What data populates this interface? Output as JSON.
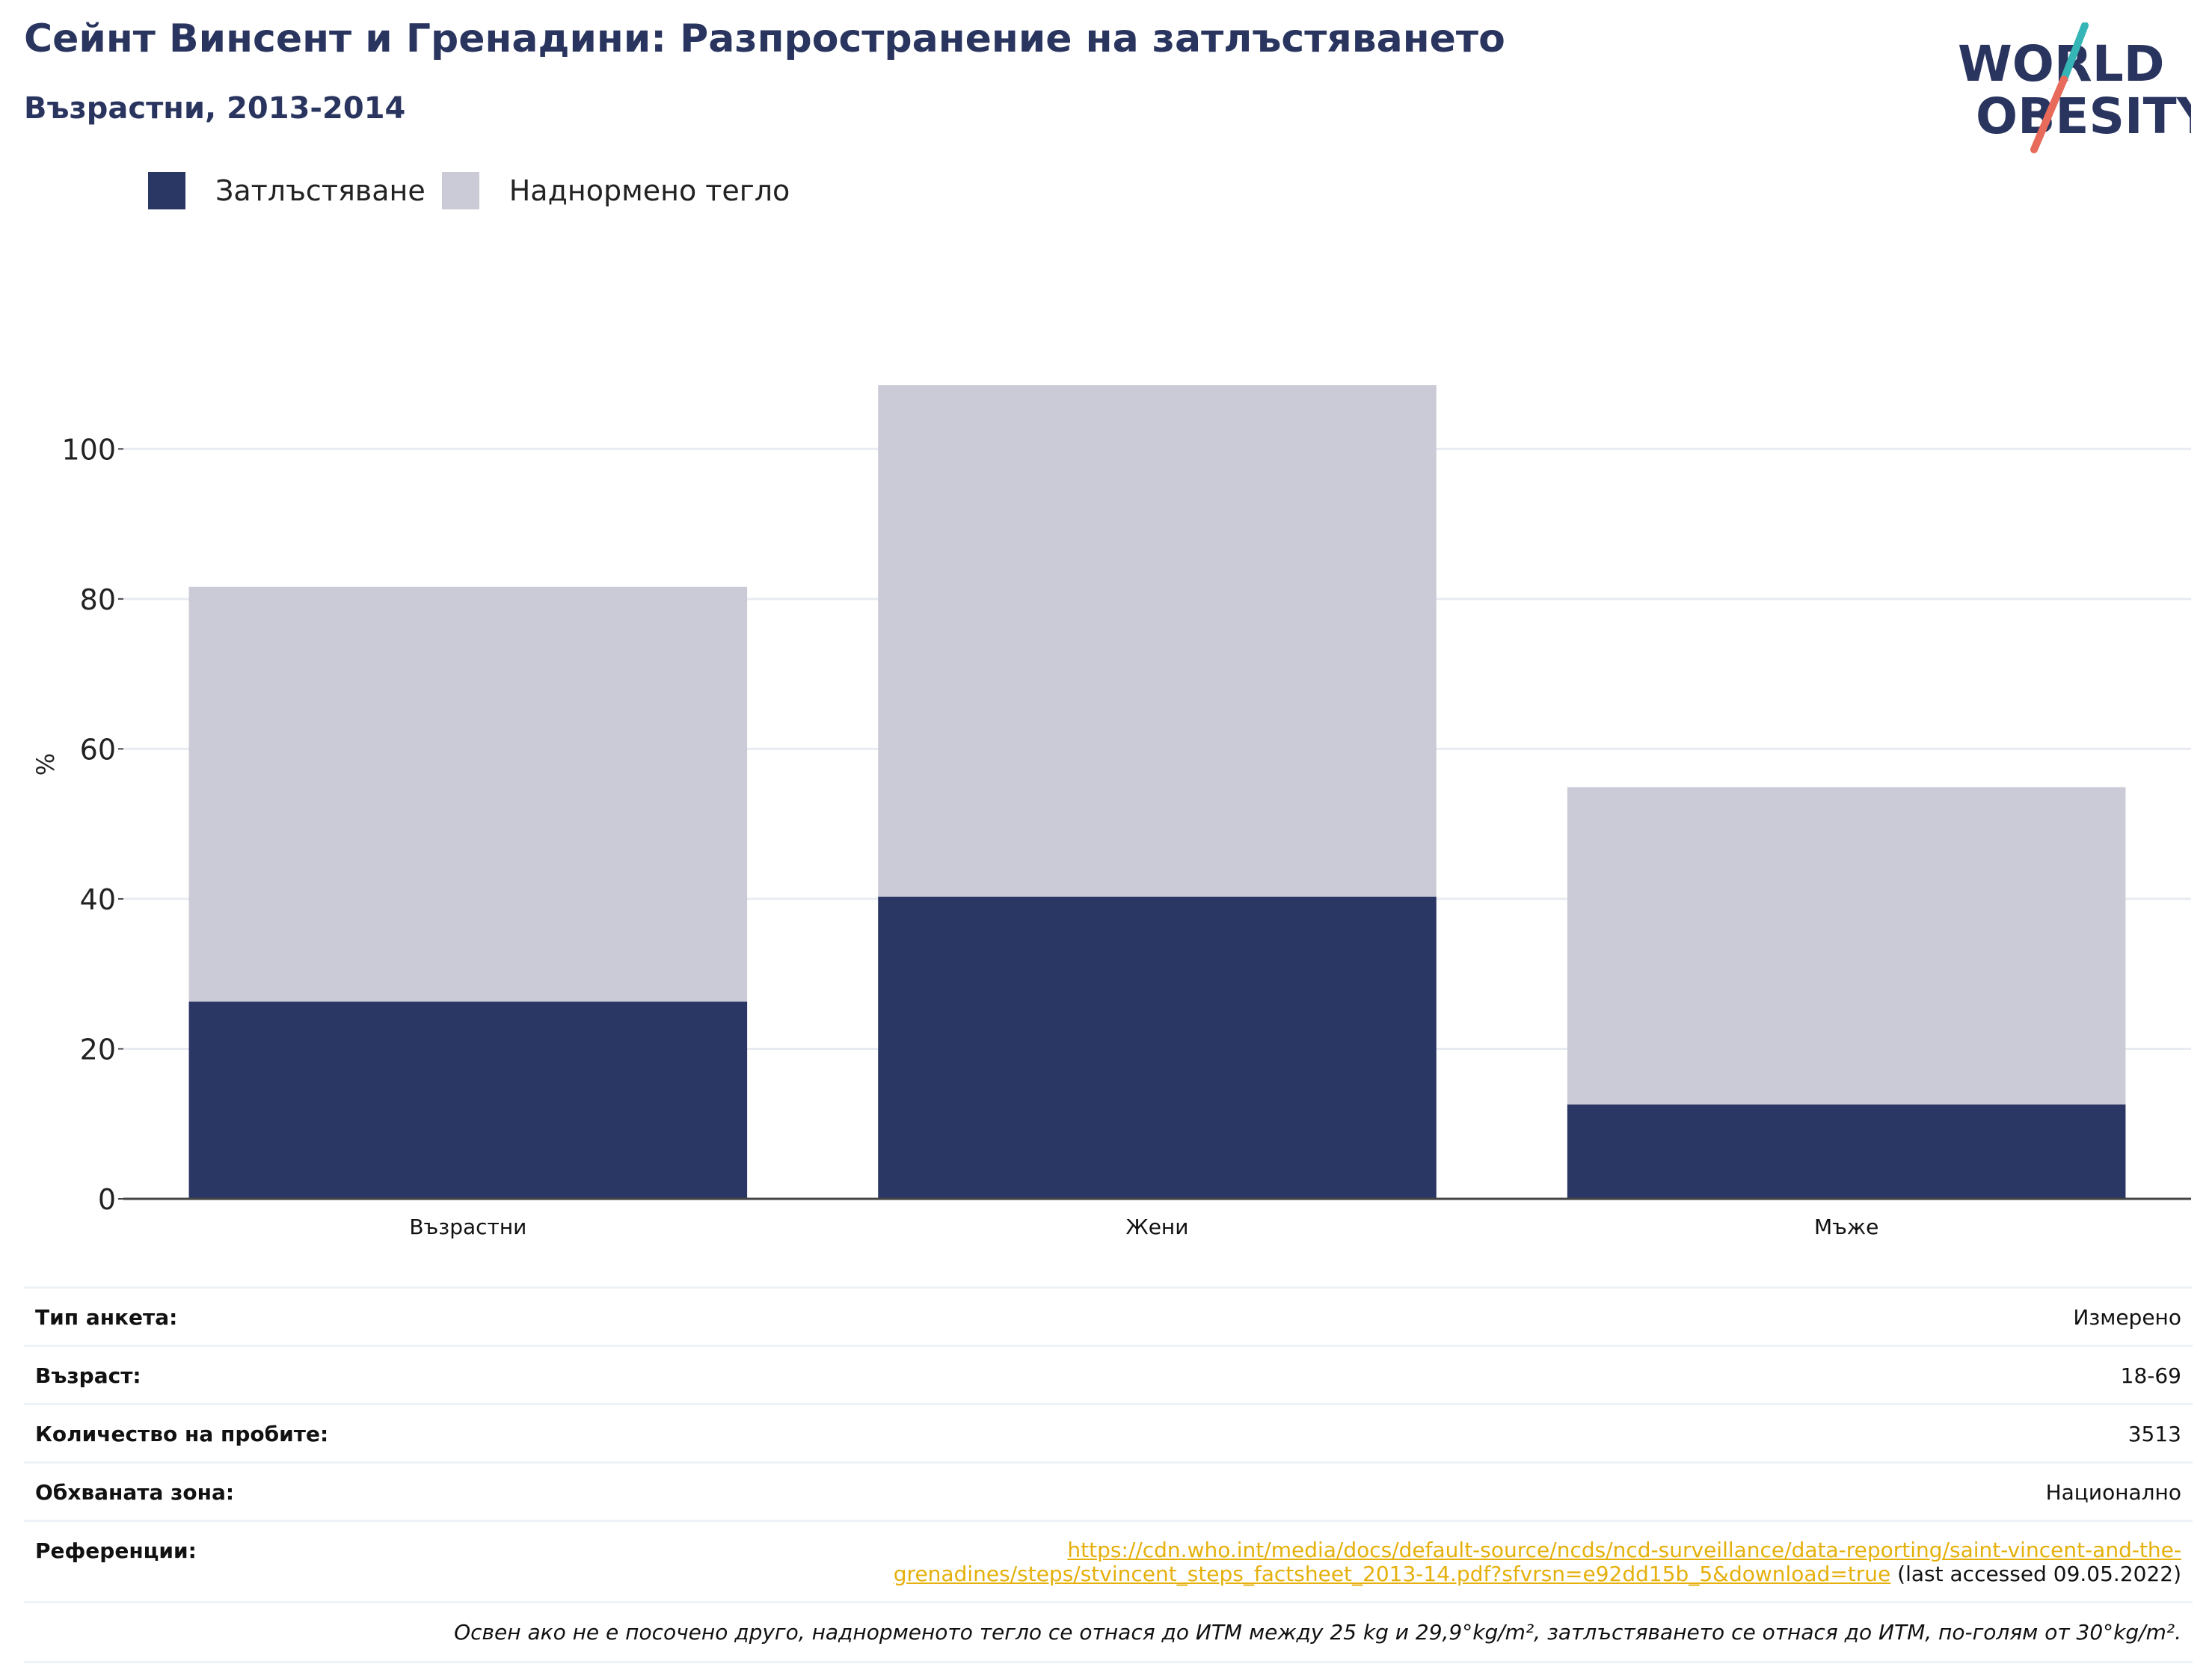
{
  "header": {
    "title": "Сейнт Винсент и Гренадини: Разпространение на затлъстяването",
    "subtitle": "Възрастни, 2013-2014"
  },
  "logo": {
    "line1": "WORLD",
    "line2": "OBESITY"
  },
  "colors": {
    "obesity": "#2a3664",
    "overweight": "#cacbd7",
    "title": "#2a355f",
    "link": "#e5b00b",
    "grid": "#e8ecf2"
  },
  "chart_data": {
    "type": "bar",
    "stacked": true,
    "categories": [
      "Възрастни",
      "Жени",
      "Мъже"
    ],
    "series": [
      {
        "name": "Затлъстяване",
        "values": [
          26.3,
          40.3,
          12.6
        ]
      },
      {
        "name": "Наднормено тегло",
        "values": [
          55.3,
          68.2,
          42.3
        ]
      }
    ],
    "ylabel": "%",
    "ylim": [
      0,
      110
    ],
    "yticks": [
      0,
      20,
      40,
      60,
      80,
      100
    ],
    "grid": true,
    "legend_position": "top-left"
  },
  "info": {
    "survey_type_label": "Тип анкета:",
    "survey_type_value": "Измерено",
    "age_label": "Възраст:",
    "age_value": "18-69",
    "sample_label": "Количество на пробите:",
    "sample_value": "3513",
    "area_label": "Обхваната зона:",
    "area_value": "Национално",
    "ref_label": "Референции:",
    "ref_link_line1": "https://cdn.who.int/media/docs/default-source/ncds/ncd-surveillance/data-reporting/saint-vincent-and-the-",
    "ref_link_line2": "grenadines/steps/stvincent_steps_factsheet_2013-14.pdf?sfvrsn=e92dd15b_5&download=true",
    "ref_accessed": " (last accessed 09.05.2022)",
    "note": "Освен ако не е посочено друго, наднорменото тегло се отнася до ИТМ между 25 kg и 29,9°kg/m², затлъстяването се отнася до ИТМ, по-голям от 30°kg/m²."
  }
}
